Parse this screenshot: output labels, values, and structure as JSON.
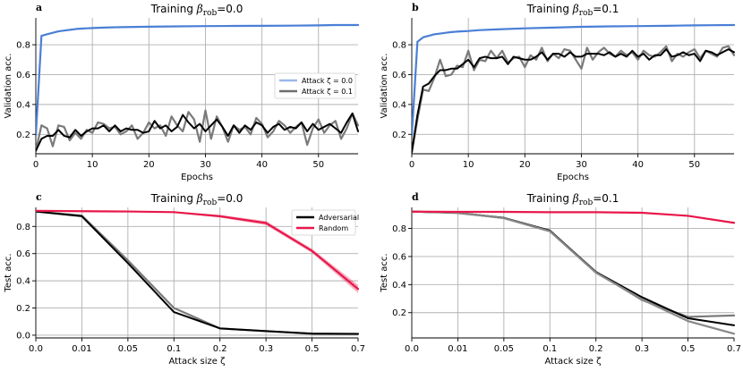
{
  "chart_data": [
    {
      "id": "a",
      "type": "line",
      "panel_label": "a",
      "title": "Training β_rob=0.0",
      "title_prefix": "Training ",
      "title_beta": "β",
      "title_sub": "rob",
      "title_suffix": "=0.0",
      "xlabel": "Epochs",
      "ylabel": "Validation acc.",
      "xlim": [
        0,
        57
      ],
      "ylim": [
        0.07,
        0.98
      ],
      "xticks": [
        0,
        10,
        20,
        30,
        40,
        50
      ],
      "yticks": [
        0.2,
        0.4,
        0.6,
        0.8
      ],
      "legend": [
        "Attack ζ = 0.0",
        "Attack ζ = 0.1"
      ],
      "series": [
        {
          "name": "Attack ζ = 0.0",
          "color": "#4a7fd6",
          "x": [
            0,
            1,
            2,
            3,
            4,
            5,
            6,
            7,
            8,
            9,
            10,
            12,
            15,
            20,
            25,
            30,
            35,
            40,
            45,
            50,
            53,
            57
          ],
          "values": [
            0.19,
            0.86,
            0.87,
            0.88,
            0.89,
            0.895,
            0.9,
            0.905,
            0.908,
            0.91,
            0.912,
            0.915,
            0.918,
            0.921,
            0.923,
            0.925,
            0.926,
            0.927,
            0.928,
            0.93,
            0.932,
            0.932
          ]
        },
        {
          "name": "Attack ζ = 0.1 (run 1)",
          "color": "#7a7a7a",
          "values": [
            0.09,
            0.26,
            0.24,
            0.12,
            0.26,
            0.25,
            0.16,
            0.21,
            0.17,
            0.23,
            0.21,
            0.28,
            0.27,
            0.24,
            0.25,
            0.2,
            0.22,
            0.26,
            0.17,
            0.21,
            0.28,
            0.24,
            0.26,
            0.19,
            0.32,
            0.26,
            0.22,
            0.35,
            0.3,
            0.15,
            0.36,
            0.17,
            0.32,
            0.25,
            0.15,
            0.26,
            0.23,
            0.25,
            0.2,
            0.31,
            0.27,
            0.18,
            0.22,
            0.29,
            0.26,
            0.21,
            0.25,
            0.28,
            0.13,
            0.24,
            0.3,
            0.21,
            0.26,
            0.29,
            0.17,
            0.24,
            0.34,
            0.26
          ]
        },
        {
          "name": "Attack ζ = 0.1 (run 2)",
          "color": "#000000",
          "values": [
            0.09,
            0.17,
            0.19,
            0.19,
            0.23,
            0.19,
            0.18,
            0.23,
            0.19,
            0.22,
            0.24,
            0.24,
            0.26,
            0.22,
            0.26,
            0.22,
            0.24,
            0.23,
            0.23,
            0.21,
            0.22,
            0.29,
            0.24,
            0.26,
            0.22,
            0.25,
            0.33,
            0.28,
            0.24,
            0.27,
            0.22,
            0.26,
            0.3,
            0.25,
            0.19,
            0.26,
            0.21,
            0.26,
            0.23,
            0.28,
            0.26,
            0.21,
            0.25,
            0.27,
            0.23,
            0.25,
            0.24,
            0.28,
            0.22,
            0.27,
            0.23,
            0.25,
            0.27,
            0.24,
            0.21,
            0.28,
            0.34,
            0.22
          ]
        }
      ]
    },
    {
      "id": "b",
      "type": "line",
      "panel_label": "b",
      "title": "Training β_rob=0.1",
      "title_prefix": "Training ",
      "title_beta": "β",
      "title_sub": "rob",
      "title_suffix": "=0.1",
      "xlabel": "Epochs",
      "ylabel": "Validation acc.",
      "xlim": [
        0,
        57
      ],
      "ylim": [
        0.07,
        0.98
      ],
      "xticks": [
        0,
        10,
        20,
        30,
        40,
        50
      ],
      "yticks": [
        0.2,
        0.4,
        0.6,
        0.8
      ],
      "series": [
        {
          "name": "Attack ζ = 0.0",
          "color": "#4a7fd6",
          "x": [
            0,
            1,
            2,
            3,
            4,
            5,
            6,
            7,
            8,
            9,
            10,
            12,
            15,
            20,
            25,
            30,
            35,
            40,
            45,
            50,
            53,
            57
          ],
          "values": [
            0.19,
            0.82,
            0.85,
            0.86,
            0.87,
            0.875,
            0.88,
            0.885,
            0.888,
            0.89,
            0.892,
            0.898,
            0.903,
            0.91,
            0.915,
            0.92,
            0.923,
            0.925,
            0.927,
            0.93,
            0.931,
            0.932
          ]
        },
        {
          "name": "Attack ζ = 0.1 (run 1)",
          "color": "#7a7a7a",
          "values": [
            0.08,
            0.3,
            0.5,
            0.49,
            0.58,
            0.7,
            0.59,
            0.6,
            0.66,
            0.65,
            0.76,
            0.63,
            0.7,
            0.69,
            0.76,
            0.71,
            0.76,
            0.68,
            0.71,
            0.72,
            0.65,
            0.73,
            0.7,
            0.78,
            0.69,
            0.74,
            0.71,
            0.77,
            0.76,
            0.7,
            0.64,
            0.78,
            0.7,
            0.75,
            0.78,
            0.74,
            0.72,
            0.76,
            0.73,
            0.75,
            0.7,
            0.76,
            0.73,
            0.72,
            0.75,
            0.79,
            0.69,
            0.74,
            0.72,
            0.75,
            0.77,
            0.71,
            0.76,
            0.74,
            0.72,
            0.78,
            0.79,
            0.73
          ]
        },
        {
          "name": "Attack ζ = 0.1 (run 2)",
          "color": "#000000",
          "values": [
            0.08,
            0.33,
            0.52,
            0.54,
            0.59,
            0.63,
            0.63,
            0.64,
            0.64,
            0.67,
            0.7,
            0.65,
            0.71,
            0.72,
            0.71,
            0.71,
            0.72,
            0.67,
            0.72,
            0.71,
            0.7,
            0.7,
            0.72,
            0.75,
            0.7,
            0.74,
            0.74,
            0.72,
            0.75,
            0.72,
            0.72,
            0.74,
            0.74,
            0.74,
            0.73,
            0.75,
            0.72,
            0.74,
            0.72,
            0.76,
            0.72,
            0.74,
            0.7,
            0.73,
            0.73,
            0.77,
            0.72,
            0.73,
            0.75,
            0.73,
            0.74,
            0.69,
            0.76,
            0.75,
            0.73,
            0.75,
            0.77,
            0.75
          ]
        }
      ]
    },
    {
      "id": "c",
      "type": "line",
      "panel_label": "c",
      "title": "Training β_rob=0.0",
      "title_prefix": "Training ",
      "title_beta": "β",
      "title_sub": "rob",
      "title_suffix": "=0.0",
      "xlabel": "Attack size ζ",
      "ylabel": "Test acc.",
      "categories": [
        "0.0",
        "0.01",
        "0.05",
        "0.1",
        "0.2",
        "0.3",
        "0.5",
        "0.7"
      ],
      "ylim": [
        -0.02,
        0.94
      ],
      "yticks": [
        0.0,
        0.2,
        0.4,
        0.6,
        0.8
      ],
      "legend": [
        "Adversarial",
        "Random"
      ],
      "series": [
        {
          "name": "Adversarial (run 1)",
          "color": "#7a7a7a",
          "values": [
            0.91,
            0.88,
            0.55,
            0.2,
            0.05,
            0.03,
            0.01,
            0.01
          ]
        },
        {
          "name": "Adversarial (run 2)",
          "color": "#000000",
          "values": [
            0.91,
            0.875,
            0.53,
            0.17,
            0.05,
            0.03,
            0.012,
            0.01
          ]
        },
        {
          "name": "Random",
          "color": "#e8174a",
          "values": [
            0.915,
            0.912,
            0.91,
            0.905,
            0.875,
            0.825,
            0.62,
            0.34
          ],
          "band_lower": [
            0.912,
            0.909,
            0.906,
            0.901,
            0.865,
            0.81,
            0.605,
            0.31
          ],
          "band_upper": [
            0.918,
            0.915,
            0.914,
            0.909,
            0.885,
            0.84,
            0.635,
            0.37
          ]
        }
      ]
    },
    {
      "id": "d",
      "type": "line",
      "panel_label": "d",
      "title": "Training β_rob=0.1",
      "title_prefix": "Training ",
      "title_beta": "β",
      "title_sub": "rob",
      "title_suffix": "=0.1",
      "xlabel": "Attack size ζ",
      "ylabel": "Test acc.",
      "categories": [
        "0.0",
        "0.01",
        "0.05",
        "0.1",
        "0.2",
        "0.3",
        "0.5",
        "0.7"
      ],
      "ylim": [
        0.02,
        0.95
      ],
      "yticks": [
        0.2,
        0.4,
        0.6,
        0.8
      ],
      "series": [
        {
          "name": "Adversarial (run 1)",
          "color": "#7a7a7a",
          "values": [
            0.92,
            0.91,
            0.875,
            0.78,
            0.49,
            0.29,
            0.17,
            0.18
          ]
        },
        {
          "name": "Adversarial (run 2)",
          "color": "#000000",
          "values": [
            0.92,
            0.912,
            0.875,
            0.785,
            0.49,
            0.31,
            0.16,
            0.11
          ]
        },
        {
          "name": "Adversarial (run 3)",
          "color": "#888888",
          "values": [
            0.92,
            0.912,
            0.873,
            0.78,
            0.485,
            0.295,
            0.14,
            0.05
          ]
        },
        {
          "name": "Random",
          "color": "#e8174a",
          "values": [
            0.92,
            0.918,
            0.918,
            0.916,
            0.916,
            0.912,
            0.89,
            0.84
          ]
        }
      ]
    }
  ]
}
